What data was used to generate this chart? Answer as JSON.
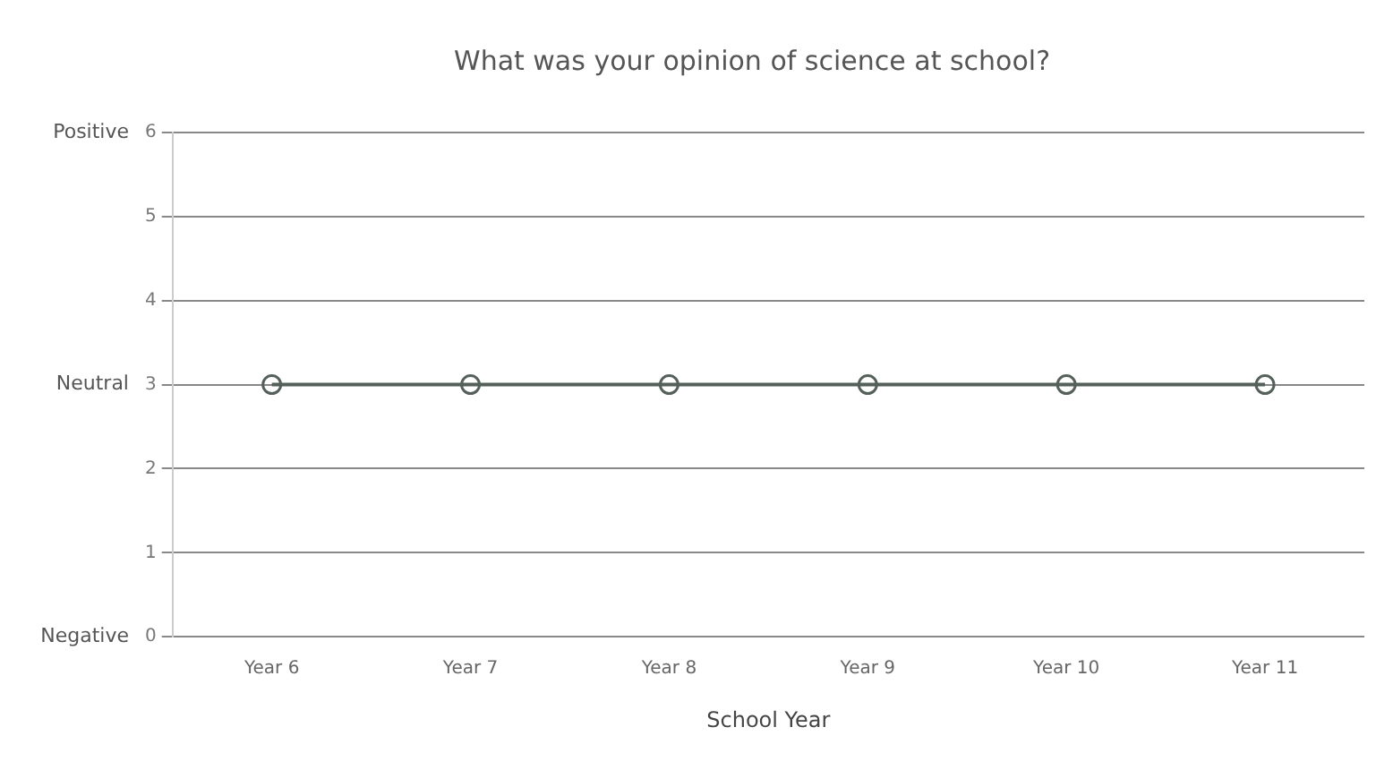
{
  "chart_data": {
    "type": "line",
    "title": "What was your opinion of science at school?",
    "xlabel": "School Year",
    "categories": [
      "Year 6",
      "Year 7",
      "Year 8",
      "Year 9",
      "Year 10",
      "Year 11"
    ],
    "series": [
      {
        "color": "#55605a",
        "values": [
          3,
          3,
          3,
          3,
          3,
          3
        ]
      }
    ],
    "ylim": [
      0,
      6
    ],
    "yticks": [
      0,
      1,
      2,
      3,
      4,
      5,
      6
    ],
    "grid": "y",
    "legend": false,
    "marker": "circle",
    "line_style": "solid",
    "annotations": [
      "Positive",
      "Neutral",
      "Negative"
    ]
  }
}
